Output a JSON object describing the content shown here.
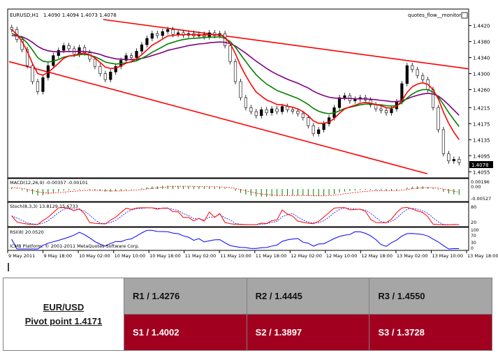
{
  "chart_data": {
    "type": "candlestick",
    "symbol_label": "EURUSD,H1",
    "ohlc_label": "1.4090 1.4094 1.4073 1.4078",
    "indicator_label": "quotes_flow__monitor2",
    "current_price_label": "1.4078",
    "ylim": [
      1.4045,
      1.4435
    ],
    "y_ticks": [
      "1.4420",
      "1.4380",
      "1.4340",
      "1.4300",
      "1.4260",
      "1.4215",
      "1.4175",
      "1.4135",
      "1.4095",
      "1.4055"
    ],
    "x_ticks": [
      "9 May 2011",
      "9 May 18:00",
      "10 May 02:00",
      "10 May 10:00",
      "10 May 18:00",
      "11 May 02:00",
      "11 May 10:00",
      "11 May 18:00",
      "12 May 02:00",
      "12 May 10:00",
      "12 May 18:00",
      "13 May 02:00",
      "13 May 10:00",
      "13 May 18:00"
    ],
    "close": [
      1.441,
      1.4385,
      1.436,
      1.432,
      1.428,
      1.4255,
      1.429,
      1.432,
      1.4345,
      1.4358,
      1.437,
      1.4362,
      1.4348,
      1.4365,
      1.4352,
      1.4336,
      1.4318,
      1.43,
      1.4285,
      1.4304,
      1.4318,
      1.4333,
      1.4345,
      1.434,
      1.4356,
      1.4372,
      1.4388,
      1.44,
      1.4395,
      1.4405,
      1.441,
      1.4398,
      1.4402,
      1.4396,
      1.44,
      1.4394,
      1.4398,
      1.4392,
      1.4402,
      1.4395,
      1.44,
      1.437,
      1.433,
      1.428,
      1.424,
      1.4215,
      1.4205,
      1.4195,
      1.421,
      1.4202,
      1.4212,
      1.4205,
      1.4218,
      1.421,
      1.4206,
      1.42,
      1.419,
      1.417,
      1.415,
      1.416,
      1.4175,
      1.419,
      1.4215,
      1.424,
      1.4245,
      1.4232,
      1.4236,
      1.424,
      1.4234,
      1.4222,
      1.4212,
      1.4208,
      1.4202,
      1.4212,
      1.423,
      1.4275,
      1.432,
      1.431,
      1.4295,
      1.4285,
      1.426,
      1.4215,
      1.416,
      1.41,
      1.4082,
      1.4086,
      1.4078
    ],
    "ema_fast": [
      1.441,
      1.4398,
      1.438,
      1.4355,
      1.4325,
      1.43,
      1.4296,
      1.4303,
      1.4314,
      1.4326,
      1.4338,
      1.4344,
      1.4345,
      1.435,
      1.4351,
      1.4347,
      1.4339,
      1.4328,
      1.4316,
      1.4313,
      1.4314,
      1.4319,
      1.4326,
      1.433,
      1.4337,
      1.4347,
      1.4359,
      1.4371,
      1.4378,
      1.4386,
      1.4394,
      1.4395,
      1.4397,
      1.4397,
      1.4398,
      1.4397,
      1.4397,
      1.4396,
      1.4398,
      1.4397,
      1.4398,
      1.439,
      1.4375,
      1.435,
      1.432,
      1.4295,
      1.4273,
      1.4254,
      1.4244,
      1.4234,
      1.4229,
      1.4223,
      1.4222,
      1.4219,
      1.4216,
      1.4212,
      1.4205,
      1.4195,
      1.4182,
      1.4176,
      1.4176,
      1.4179,
      1.4188,
      1.4201,
      1.4212,
      1.4217,
      1.4221,
      1.4226,
      1.4228,
      1.4226,
      1.4223,
      1.422,
      1.4215,
      1.4214,
      1.4218,
      1.4232,
      1.4253,
      1.4267,
      1.4274,
      1.4277,
      1.4273,
      1.426,
      1.4237,
      1.4204,
      1.4176,
      1.4154,
      1.4135
    ],
    "ema_mid": [
      1.44,
      1.4396,
      1.4389,
      1.4376,
      1.4359,
      1.434,
      1.4331,
      1.4329,
      1.4331,
      1.4335,
      1.4341,
      1.4344,
      1.4345,
      1.4347,
      1.4348,
      1.4346,
      1.4342,
      1.4336,
      1.4329,
      1.4326,
      1.4324,
      1.4325,
      1.4327,
      1.4329,
      1.4332,
      1.4338,
      1.4345,
      1.4353,
      1.436,
      1.4367,
      1.4374,
      1.4378,
      1.4382,
      1.4385,
      1.4387,
      1.4388,
      1.4389,
      1.439,
      1.4391,
      1.4391,
      1.4392,
      1.4388,
      1.438,
      1.4366,
      1.4348,
      1.433,
      1.4313,
      1.4297,
      1.4285,
      1.4274,
      1.4266,
      1.4258,
      1.4253,
      1.4248,
      1.4243,
      1.4238,
      1.4231,
      1.4223,
      1.4213,
      1.4206,
      1.4202,
      1.42,
      1.4202,
      1.4207,
      1.4213,
      1.4216,
      1.4219,
      1.4222,
      1.4224,
      1.4224,
      1.4223,
      1.4222,
      1.422,
      1.4219,
      1.422,
      1.4227,
      1.4239,
      1.4249,
      1.4256,
      1.426,
      1.426,
      1.4254,
      1.4242,
      1.4223,
      1.4203,
      1.4185,
      1.4168
    ],
    "ema_slow": [
      1.4395,
      1.4394,
      1.4392,
      1.4386,
      1.4378,
      1.4368,
      1.4361,
      1.4357,
      1.4355,
      1.4354,
      1.4355,
      1.4355,
      1.4355,
      1.4356,
      1.4355,
      1.4354,
      1.4351,
      1.4348,
      1.4343,
      1.434,
      1.4337,
      1.4336,
      1.4335,
      1.4335,
      1.4336,
      1.4338,
      1.4341,
      1.4345,
      1.4349,
      1.4353,
      1.4358,
      1.4361,
      1.4364,
      1.4367,
      1.437,
      1.4372,
      1.4374,
      1.4375,
      1.4377,
      1.4378,
      1.4379,
      1.4378,
      1.4375,
      1.4369,
      1.436,
      1.4351,
      1.4341,
      1.4331,
      1.4322,
      1.4313,
      1.4305,
      1.4298,
      1.4292,
      1.4286,
      1.4281,
      1.4276,
      1.427,
      1.4264,
      1.4256,
      1.425,
      1.4245,
      1.4241,
      1.4239,
      1.4238,
      1.4238,
      1.4238,
      1.4237,
      1.4237,
      1.4237,
      1.4236,
      1.4235,
      1.4233,
      1.4232,
      1.423,
      1.423,
      1.4232,
      1.4237,
      1.4242,
      1.4246,
      1.4249,
      1.4251,
      1.4249,
      1.4244,
      1.4234,
      1.4222,
      1.4209,
      1.4196
    ],
    "channel_upper": [
      {
        "x": 0.205,
        "y": 1.4435
      },
      {
        "x": 1.0,
        "y": 1.4312
      }
    ],
    "channel_lower": [
      {
        "x": 0.0,
        "y": 1.433
      },
      {
        "x": 0.91,
        "y": 1.405
      }
    ],
    "macd": {
      "label": "MACD(12,26,9) -0.00357 -0.00101",
      "ticks": [
        "0.00196",
        "0.00",
        "-0.00527"
      ]
    },
    "stoch": {
      "label": "Stoch(8,3,3) 13.8129 15.6733",
      "ticks": [
        "80",
        "20"
      ]
    },
    "rsi": {
      "label": "RSI(8) 20.0520",
      "ticks": [
        "100",
        "70",
        "30",
        "0"
      ]
    },
    "footer_label": "ICMB Platform, © 2001-2011 MetaQuotes Software Corp.",
    "colors": {
      "up": "#000000",
      "down": "#ffffff",
      "ma_fast": "#ff0000",
      "ma_mid": "#008000",
      "ma_slow": "#800080",
      "channel": "#ff0000",
      "macd_hist": "#008000",
      "macd_signal": "#ff0000",
      "stoch_main": "#ff0000",
      "stoch_signal": "#0000ff",
      "rsi": "#0000ff"
    }
  },
  "pivot_table": {
    "pair": "EUR/USD",
    "pivot": "Pivot point 1.4171",
    "r1": "R1 / 1.4276",
    "r2": "R2 / 1.4445",
    "r3": "R3 / 1.4550",
    "s1": "S1 / 1.4002",
    "s2": "S2 / 1.3897",
    "s3": "S3 / 1.3728",
    "colors": {
      "resistance_bg": "#a6a6a6",
      "support_bg": "#a1001f"
    }
  }
}
